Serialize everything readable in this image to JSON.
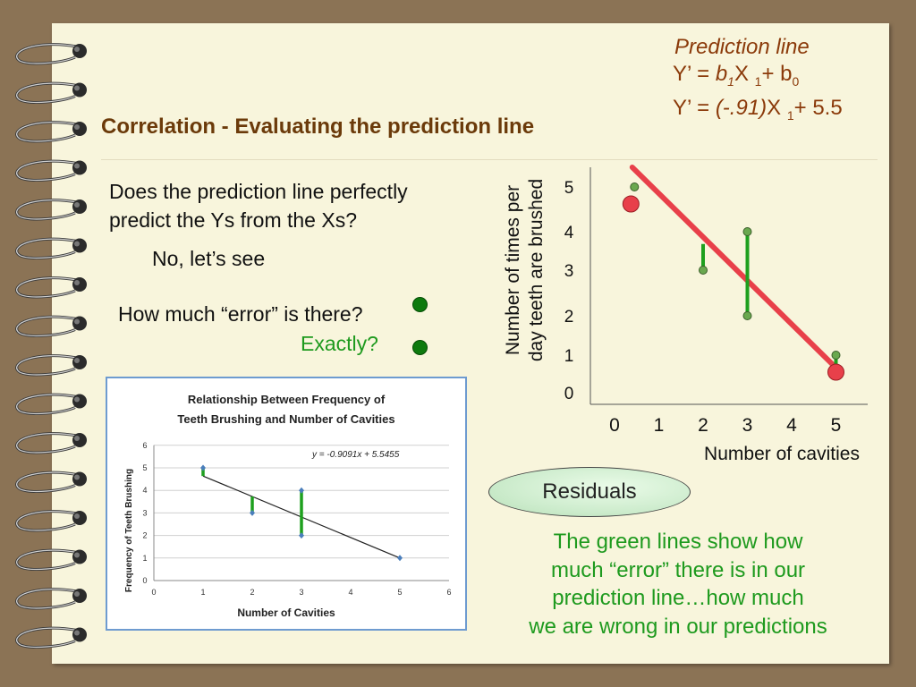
{
  "slide": {
    "title": "Correlation - Evaluating the prediction line",
    "formula": {
      "heading": "Prediction line",
      "line1": {
        "prefix": "Y’ =",
        "b1": "b",
        "b1_sub": "1",
        "x": "X",
        "x_sub": "1",
        "plus": "+ b",
        "b0_sub": "0"
      },
      "line2": {
        "prefix": "Y’ =",
        "slope": "(-.91)",
        "x": "X",
        "x_sub": "1",
        "plus": "+ 5.5"
      }
    },
    "question1": "Does the prediction line perfectly",
    "question1_b": "predict the Ys from the Xs?",
    "answer1": "No, let’s see",
    "question2": "How much “error” is there?",
    "answer2": "Exactly?",
    "residuals_label": "Residuals",
    "explanation": [
      "The green lines show how",
      "much “error” there is in our",
      "prediction line…how much",
      "we are wrong in our predictions"
    ]
  },
  "chart_data": [
    {
      "type": "scatter",
      "title": "",
      "xlabel": "Number of cavities",
      "ylabel": "Number of times per day teeth are brushed",
      "xlim": [
        0,
        5
      ],
      "ylim": [
        0,
        5
      ],
      "x_ticks": [
        "0",
        "1",
        "2",
        "3",
        "4",
        "5"
      ],
      "y_ticks": [
        "0",
        "1",
        "2",
        "3",
        "4",
        "5"
      ],
      "points": [
        {
          "x": 1,
          "y": 5
        },
        {
          "x": 2,
          "y": 3
        },
        {
          "x": 3,
          "y": 4
        },
        {
          "x": 3,
          "y": 2
        },
        {
          "x": 5,
          "y": 1
        }
      ],
      "prediction_line": {
        "slope": -0.91,
        "intercept": 5.5
      },
      "colors": {
        "line": "#e8404a",
        "residual": "#1ea01e",
        "point": "#6aa84f",
        "endpoint": "#e8404a"
      }
    },
    {
      "type": "scatter",
      "title": "Relationship Between Frequency of",
      "title_line2": "Teeth Brushing and Number of Cavities",
      "xlabel": "Number of Cavities",
      "ylabel": "Frequency of Teeth Brushing",
      "xlim": [
        0,
        6
      ],
      "ylim": [
        0,
        6
      ],
      "x_ticks": [
        "0",
        "1",
        "2",
        "3",
        "4",
        "5",
        "6"
      ],
      "y_ticks": [
        "0",
        "1",
        "2",
        "3",
        "4",
        "5",
        "6"
      ],
      "equation": "y = -0.9091x + 5.5455",
      "grid": true,
      "points": [
        {
          "x": 1,
          "y": 5
        },
        {
          "x": 2,
          "y": 3
        },
        {
          "x": 3,
          "y": 4
        },
        {
          "x": 3,
          "y": 2
        },
        {
          "x": 5,
          "y": 1
        }
      ],
      "trendline": {
        "slope": -0.9091,
        "intercept": 5.5455
      },
      "colors": {
        "line": "#222222",
        "residual": "#1ea01e",
        "point": "#4a7ebb"
      }
    }
  ]
}
